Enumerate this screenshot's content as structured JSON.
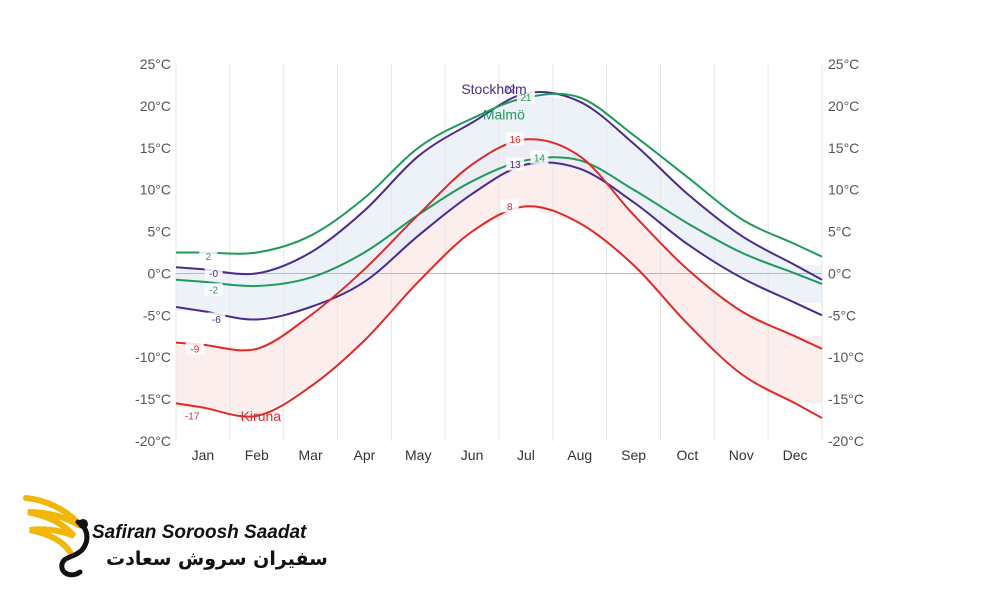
{
  "chart_data": {
    "type": "line",
    "categories": [
      "Jan",
      "Feb",
      "Mar",
      "Apr",
      "May",
      "Jun",
      "Jul",
      "Aug",
      "Sep",
      "Oct",
      "Nov",
      "Dec"
    ],
    "ylim": [
      -20,
      25
    ],
    "y_ticks": [
      "25°C",
      "20°C",
      "15°C",
      "10°C",
      "5°C",
      "0°C",
      "-5°C",
      "-10°C",
      "-15°C",
      "-20°C"
    ],
    "grid": "vertical",
    "series": [
      {
        "name": "Stockholm",
        "kind": "max",
        "color": "#4b2a8f",
        "values": [
          0.5,
          0,
          2.5,
          7.5,
          14,
          18,
          21.5,
          20.5,
          15.5,
          9.5,
          4.5,
          1
        ]
      },
      {
        "name": "Stockholm",
        "kind": "min",
        "color": "#4b2a8f",
        "values": [
          -4.5,
          -5.5,
          -4,
          -1,
          4.5,
          9.5,
          13,
          12.5,
          8.5,
          3.5,
          -0.5,
          -3.5
        ]
      },
      {
        "name": "Malmö",
        "kind": "max",
        "color": "#1f9a5c",
        "values": [
          2.5,
          2.5,
          4.5,
          9,
          15,
          18.5,
          21,
          21,
          16.5,
          11.5,
          6.5,
          3.5
        ]
      },
      {
        "name": "Malmö",
        "kind": "min",
        "color": "#1f9a5c",
        "values": [
          -1,
          -1.5,
          -0.5,
          2.5,
          7,
          11,
          13.5,
          13.5,
          10,
          6,
          2.5,
          0
        ]
      },
      {
        "name": "Kiruna",
        "kind": "max",
        "color": "#e02a2a",
        "values": [
          -8.5,
          -9,
          -5,
          0.5,
          7,
          13,
          16,
          14,
          7,
          0.5,
          -4.5,
          -7.5
        ]
      },
      {
        "name": "Kiruna",
        "kind": "min",
        "color": "#e02a2a",
        "values": [
          -16,
          -17,
          -13.5,
          -8,
          -1,
          5,
          8,
          6,
          1,
          -6,
          -12,
          -15.5
        ]
      }
    ],
    "data_labels": [
      {
        "text": "2",
        "month": 0.6,
        "value": 2,
        "color": "#1f9a5c"
      },
      {
        "text": "-0",
        "month": 0.7,
        "value": 0,
        "color": "#4b2a8f"
      },
      {
        "text": "-2",
        "month": 0.7,
        "value": -2,
        "color": "#1f9a5c"
      },
      {
        "text": "-6",
        "month": 0.75,
        "value": -5.5,
        "color": "#4b2a8f"
      },
      {
        "text": "-9",
        "month": 0.35,
        "value": -9,
        "color": "#e02a2a"
      },
      {
        "text": "-17",
        "month": 0.3,
        "value": -17,
        "color": "#e02a2a"
      },
      {
        "text": "22",
        "month": 6.2,
        "value": 22,
        "color": "#4b2a8f"
      },
      {
        "text": "21",
        "month": 6.5,
        "value": 21,
        "color": "#1f9a5c"
      },
      {
        "text": "16",
        "month": 6.3,
        "value": 16,
        "color": "#e02a2a"
      },
      {
        "text": "14",
        "month": 6.75,
        "value": 13.8,
        "color": "#1f9a5c"
      },
      {
        "text": "13",
        "month": 6.3,
        "value": 13,
        "color": "#4b2a8f"
      },
      {
        "text": "8",
        "month": 6.2,
        "value": 8,
        "color": "#e02a2a"
      }
    ],
    "city_labels": [
      {
        "text": "Stockholm",
        "month": 5.3,
        "value": 22,
        "color": "#4b2a8f"
      },
      {
        "text": "Malmö",
        "month": 5.7,
        "value": 19,
        "color": "#1f9a5c"
      },
      {
        "text": "Kiruna",
        "month": 1.2,
        "value": -17,
        "color": "#e02a2a"
      }
    ]
  },
  "logo": {
    "name_en": "Safiran Soroosh Saadat",
    "name_fa": "سفیران سروش سعادت",
    "accent": "#f2b705"
  }
}
